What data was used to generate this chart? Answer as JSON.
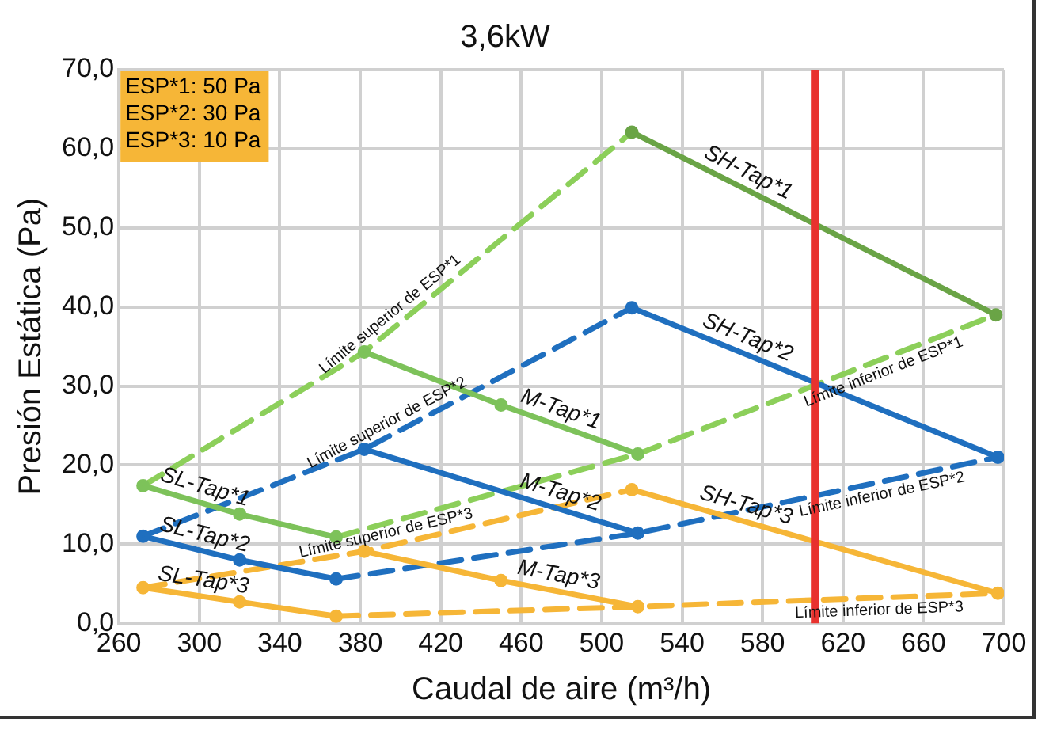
{
  "chart_data": {
    "type": "line",
    "title": "3,6kW",
    "xlabel": "Caudal de aire (m³/h)",
    "ylabel": "Presión Estática (Pa)",
    "annotations": [
      "ESP*1: 50 Pa",
      "ESP*2: 30 Pa",
      "ESP*3: 10 Pa"
    ],
    "xlim": [
      260,
      700
    ],
    "xticks": [
      260,
      300,
      340,
      380,
      420,
      460,
      500,
      540,
      580,
      620,
      660,
      700
    ],
    "ylim": [
      0,
      70
    ],
    "yticks": [
      {
        "value": 0,
        "label": "0,0"
      },
      {
        "value": 10,
        "label": "10,0"
      },
      {
        "value": 20,
        "label": "20,0"
      },
      {
        "value": 30,
        "label": "30,0"
      },
      {
        "value": 40,
        "label": "40,0"
      },
      {
        "value": 50,
        "label": "50,0"
      },
      {
        "value": 60,
        "label": "60,0"
      },
      {
        "value": 70,
        "label": "70,0"
      }
    ],
    "grid": true,
    "legend": false,
    "marker": "circle",
    "ref_lines": [
      {
        "axis": "x",
        "value": 606,
        "color": "#e8322e"
      }
    ],
    "series": [
      {
        "name": "SL-Tap*1",
        "color": "#7dc25a",
        "x": [
          272,
          320,
          368
        ],
        "values": [
          17.4,
          13.8,
          10.9
        ],
        "line_style": "solid"
      },
      {
        "name": "M-Tap*1",
        "color": "#7dc25a",
        "x": [
          382,
          450,
          518
        ],
        "values": [
          34.3,
          27.6,
          21.4
        ],
        "line_style": "solid"
      },
      {
        "name": "SH-Tap*1",
        "color": "#6aa446",
        "x": [
          515,
          696
        ],
        "values": [
          62.1,
          39.0
        ],
        "line_style": "solid"
      },
      {
        "name": "SL-Tap*2",
        "color": "#1f6fbf",
        "x": [
          272,
          320,
          368
        ],
        "values": [
          11.0,
          8.0,
          5.6
        ],
        "line_style": "solid"
      },
      {
        "name": "M-Tap*2",
        "color": "#1f6fbf",
        "x": [
          382,
          518
        ],
        "values": [
          22.0,
          11.4
        ],
        "line_style": "solid"
      },
      {
        "name": "SH-Tap*2",
        "color": "#1f6fbf",
        "x": [
          515,
          697
        ],
        "values": [
          39.9,
          21.0
        ],
        "line_style": "solid"
      },
      {
        "name": "SL-Tap*3",
        "color": "#f6b637",
        "x": [
          272,
          320,
          368
        ],
        "values": [
          4.5,
          2.7,
          0.9
        ],
        "line_style": "solid"
      },
      {
        "name": "M-Tap*3",
        "color": "#f6b637",
        "x": [
          382,
          450,
          518
        ],
        "values": [
          9.1,
          5.4,
          2.1
        ],
        "line_style": "solid"
      },
      {
        "name": "SH-Tap*3",
        "color": "#f6b637",
        "x": [
          515,
          697
        ],
        "values": [
          16.9,
          3.8
        ],
        "line_style": "solid"
      },
      {
        "name": "Límite superior de ESP*1",
        "color": "#8ccf5a",
        "x": [
          272,
          382,
          515
        ],
        "values": [
          17.4,
          34.3,
          62.1
        ],
        "line_style": "dashed",
        "marker": "none"
      },
      {
        "name": "Límite inferior de ESP*1",
        "color": "#8ccf5a",
        "x": [
          368,
          518,
          696
        ],
        "values": [
          10.9,
          21.4,
          39.0
        ],
        "line_style": "dashed",
        "marker": "none"
      },
      {
        "name": "Límite superior de ESP*2",
        "color": "#1f6fbf",
        "x": [
          272,
          382,
          515
        ],
        "values": [
          11.0,
          22.0,
          39.9
        ],
        "line_style": "dashed",
        "marker": "none"
      },
      {
        "name": "Límite inferior de ESP*2",
        "color": "#1f6fbf",
        "x": [
          368,
          518,
          697
        ],
        "values": [
          5.6,
          11.4,
          21.0
        ],
        "line_style": "dashed",
        "marker": "none"
      },
      {
        "name": "Límite superior de ESP*3",
        "color": "#f6b637",
        "x": [
          272,
          382,
          515
        ],
        "values": [
          4.5,
          9.1,
          16.9
        ],
        "line_style": "dashed",
        "marker": "none"
      },
      {
        "name": "Límite inferior de ESP*3",
        "color": "#f6b637",
        "x": [
          368,
          518,
          697
        ],
        "values": [
          0.9,
          2.1,
          3.8
        ],
        "line_style": "dashed",
        "marker": "none"
      }
    ]
  }
}
